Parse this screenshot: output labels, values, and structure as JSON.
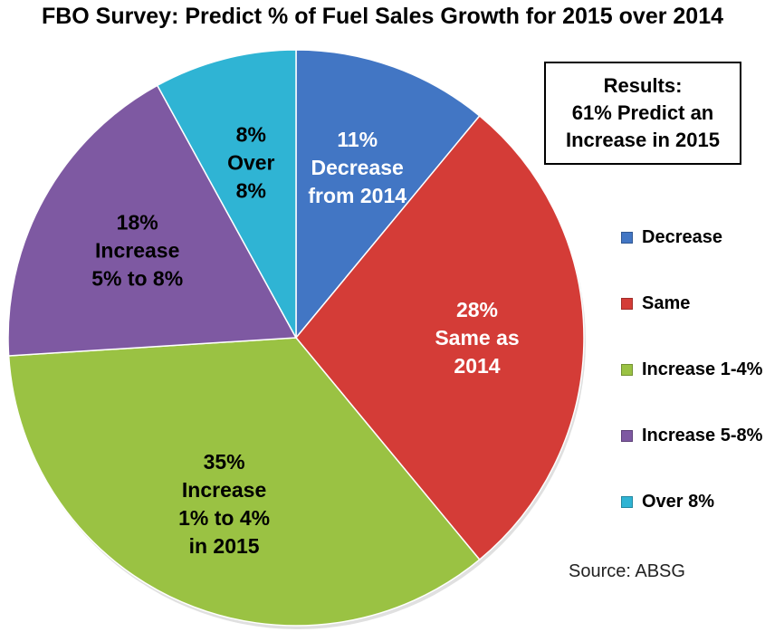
{
  "chart_data": {
    "type": "pie",
    "title": "FBO Survey: Predict % of Fuel Sales Growth for 2015 over 2014",
    "slices": [
      {
        "name": "Decrease",
        "value": 11,
        "color": "#4276c4",
        "label_lines": [
          "11%",
          "Decrease",
          "from 2014"
        ],
        "text_color": "#ffffff"
      },
      {
        "name": "Same",
        "value": 28,
        "color": "#d43c37",
        "label_lines": [
          "28%",
          "Same as",
          "2014"
        ],
        "text_color": "#ffffff"
      },
      {
        "name": "Increase 1-4%",
        "value": 35,
        "color": "#9ac243",
        "label_lines": [
          "35%",
          "Increase",
          "1% to 4%",
          "in 2015"
        ],
        "text_color": "#000000"
      },
      {
        "name": "Increase 5-8%",
        "value": 18,
        "color": "#7e59a2",
        "label_lines": [
          "18%",
          "Increase",
          "5% to 8%"
        ],
        "text_color": "#000000"
      },
      {
        "name": "Over 8%",
        "value": 8,
        "color": "#2fb4d4",
        "label_lines": [
          "8%",
          "Over",
          "8%"
        ],
        "text_color": "#000000"
      }
    ],
    "legend_placement": "right",
    "annotation_lines": [
      "Results:",
      "61% Predict an",
      "Increase in 2015"
    ],
    "source": "Source: ABSG"
  }
}
